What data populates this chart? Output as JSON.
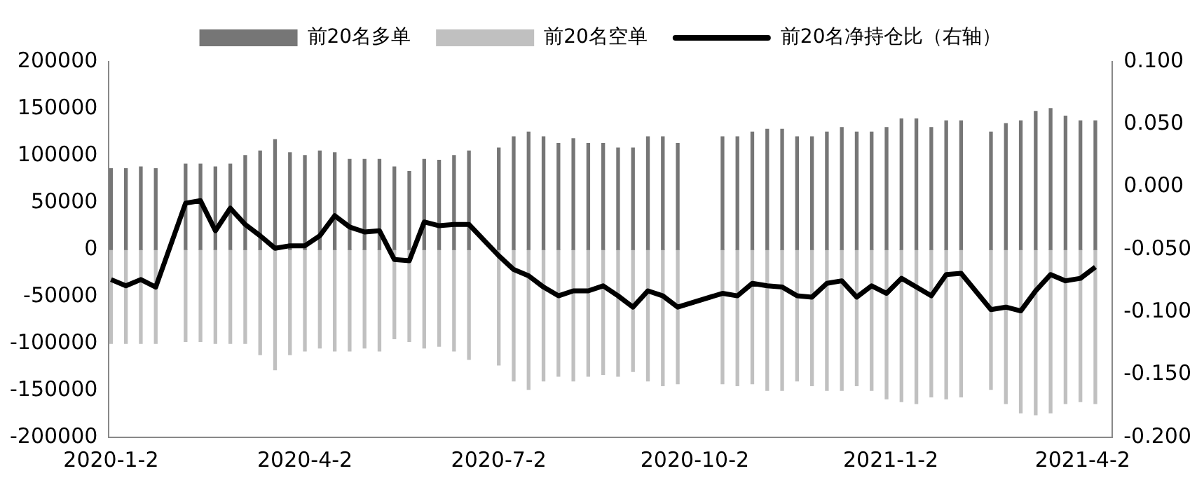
{
  "chart_data": {
    "type": "bar",
    "legend": "top",
    "stacked": true,
    "x": [
      "2020-01-02",
      "2020-01-09",
      "2020-01-16",
      "2020-01-23",
      "2020-01-30",
      "2020-02-06",
      "2020-02-13",
      "2020-02-20",
      "2020-02-27",
      "2020-03-05",
      "2020-03-12",
      "2020-03-19",
      "2020-03-26",
      "2020-04-02",
      "2020-04-09",
      "2020-04-16",
      "2020-04-23",
      "2020-04-30",
      "2020-05-07",
      "2020-05-14",
      "2020-05-21",
      "2020-05-28",
      "2020-06-04",
      "2020-06-11",
      "2020-06-18",
      "2020-06-25",
      "2020-07-02",
      "2020-07-09",
      "2020-07-16",
      "2020-07-23",
      "2020-07-30",
      "2020-08-06",
      "2020-08-13",
      "2020-08-20",
      "2020-08-27",
      "2020-09-03",
      "2020-09-10",
      "2020-09-17",
      "2020-09-24",
      "2020-10-01",
      "2020-10-08",
      "2020-10-15",
      "2020-10-22",
      "2020-10-29",
      "2020-11-05",
      "2020-11-12",
      "2020-11-19",
      "2020-11-26",
      "2020-12-03",
      "2020-12-10",
      "2020-12-17",
      "2020-12-24",
      "2020-12-31",
      "2021-01-07",
      "2021-01-14",
      "2021-01-21",
      "2021-01-28",
      "2021-02-04",
      "2021-02-11",
      "2021-02-18",
      "2021-02-25",
      "2021-03-04",
      "2021-03-11",
      "2021-03-18",
      "2021-03-25",
      "2021-04-01",
      "2021-04-08"
    ],
    "series": [
      {
        "name": "前20名多单",
        "color": "#767676",
        "values": [
          86000,
          86000,
          88000,
          86000,
          null,
          91000,
          91000,
          88000,
          91000,
          100000,
          105000,
          117000,
          103000,
          100000,
          105000,
          103000,
          96000,
          96000,
          96000,
          88000,
          83000,
          96000,
          95000,
          100000,
          105000,
          null,
          108000,
          120000,
          125000,
          120000,
          113000,
          118000,
          113000,
          113000,
          108000,
          108000,
          120000,
          120000,
          113000,
          null,
          null,
          120000,
          120000,
          125000,
          128000,
          128000,
          120000,
          120000,
          125000,
          130000,
          125000,
          125000,
          130000,
          139000,
          139000,
          130000,
          137000,
          137000,
          null,
          125000,
          134000,
          137000,
          147000,
          150000,
          142000,
          137000,
          137000
        ]
      },
      {
        "name": "前20名空单",
        "color": "#c0c0c0",
        "values": [
          -100000,
          -100000,
          -100000,
          -100000,
          null,
          -98000,
          -98000,
          -100000,
          -100000,
          -100000,
          -112000,
          -128000,
          -112000,
          -108000,
          -105000,
          -108000,
          -108000,
          -105000,
          -108000,
          -95000,
          -98000,
          -105000,
          -103000,
          -108000,
          -117000,
          null,
          -123000,
          -140000,
          -149000,
          -140000,
          -135000,
          -140000,
          -135000,
          -133000,
          -135000,
          -130000,
          -140000,
          -145000,
          -143000,
          null,
          null,
          -143000,
          -145000,
          -143000,
          -150000,
          -150000,
          -140000,
          -145000,
          -150000,
          -150000,
          -145000,
          -150000,
          -159000,
          -162000,
          -164000,
          -157000,
          -159000,
          -157000,
          null,
          -149000,
          -164000,
          -174000,
          -176000,
          -174000,
          -164000,
          -162000,
          -164000
        ]
      },
      {
        "name": "前20名净持仓比（右轴）",
        "type": "line",
        "axis": "y2",
        "color": "#000000",
        "values": [
          -0.074,
          -0.079,
          -0.074,
          -0.08,
          null,
          -0.013,
          -0.011,
          -0.035,
          -0.017,
          -0.03,
          -0.039,
          -0.049,
          -0.047,
          -0.047,
          -0.039,
          -0.023,
          -0.032,
          -0.036,
          -0.035,
          -0.058,
          -0.059,
          -0.028,
          -0.031,
          -0.03,
          -0.03,
          null,
          -0.055,
          -0.066,
          -0.071,
          -0.08,
          -0.087,
          -0.083,
          -0.083,
          -0.079,
          -0.087,
          -0.096,
          -0.083,
          -0.087,
          -0.096,
          null,
          null,
          -0.085,
          -0.087,
          -0.077,
          -0.079,
          -0.08,
          -0.087,
          -0.088,
          -0.077,
          -0.075,
          -0.088,
          -0.079,
          -0.085,
          -0.073,
          -0.08,
          -0.087,
          -0.07,
          -0.069,
          null,
          -0.098,
          -0.096,
          -0.099,
          -0.083,
          -0.07,
          -0.075,
          -0.073,
          -0.064
        ]
      }
    ],
    "xlim": [
      "2020-01-01",
      "2021-04-16"
    ],
    "xticks": [
      {
        "value": "2020-01-02",
        "label": "2020-1-2"
      },
      {
        "value": "2020-04-02",
        "label": "2020-4-2"
      },
      {
        "value": "2020-07-02",
        "label": "2020-7-2"
      },
      {
        "value": "2020-10-02",
        "label": "2020-10-2"
      },
      {
        "value": "2021-01-02",
        "label": "2021-1-2"
      },
      {
        "value": "2021-04-02",
        "label": "2021-4-2"
      }
    ],
    "ylim": [
      -200000,
      200000
    ],
    "yticks": [
      -200000,
      -150000,
      -100000,
      -50000,
      0,
      50000,
      100000,
      150000,
      200000
    ],
    "y2lim": [
      -0.2,
      0.1
    ],
    "y2ticks": [
      {
        "value": -0.2,
        "label": "-0.200"
      },
      {
        "value": -0.15,
        "label": "-0.150"
      },
      {
        "value": -0.1,
        "label": "-0.100"
      },
      {
        "value": -0.05,
        "label": "-0.050"
      },
      {
        "value": 0,
        "label": "0.000"
      },
      {
        "value": 0.05,
        "label": "0.050"
      },
      {
        "value": 0.1,
        "label": "0.100"
      }
    ],
    "grid": false
  }
}
